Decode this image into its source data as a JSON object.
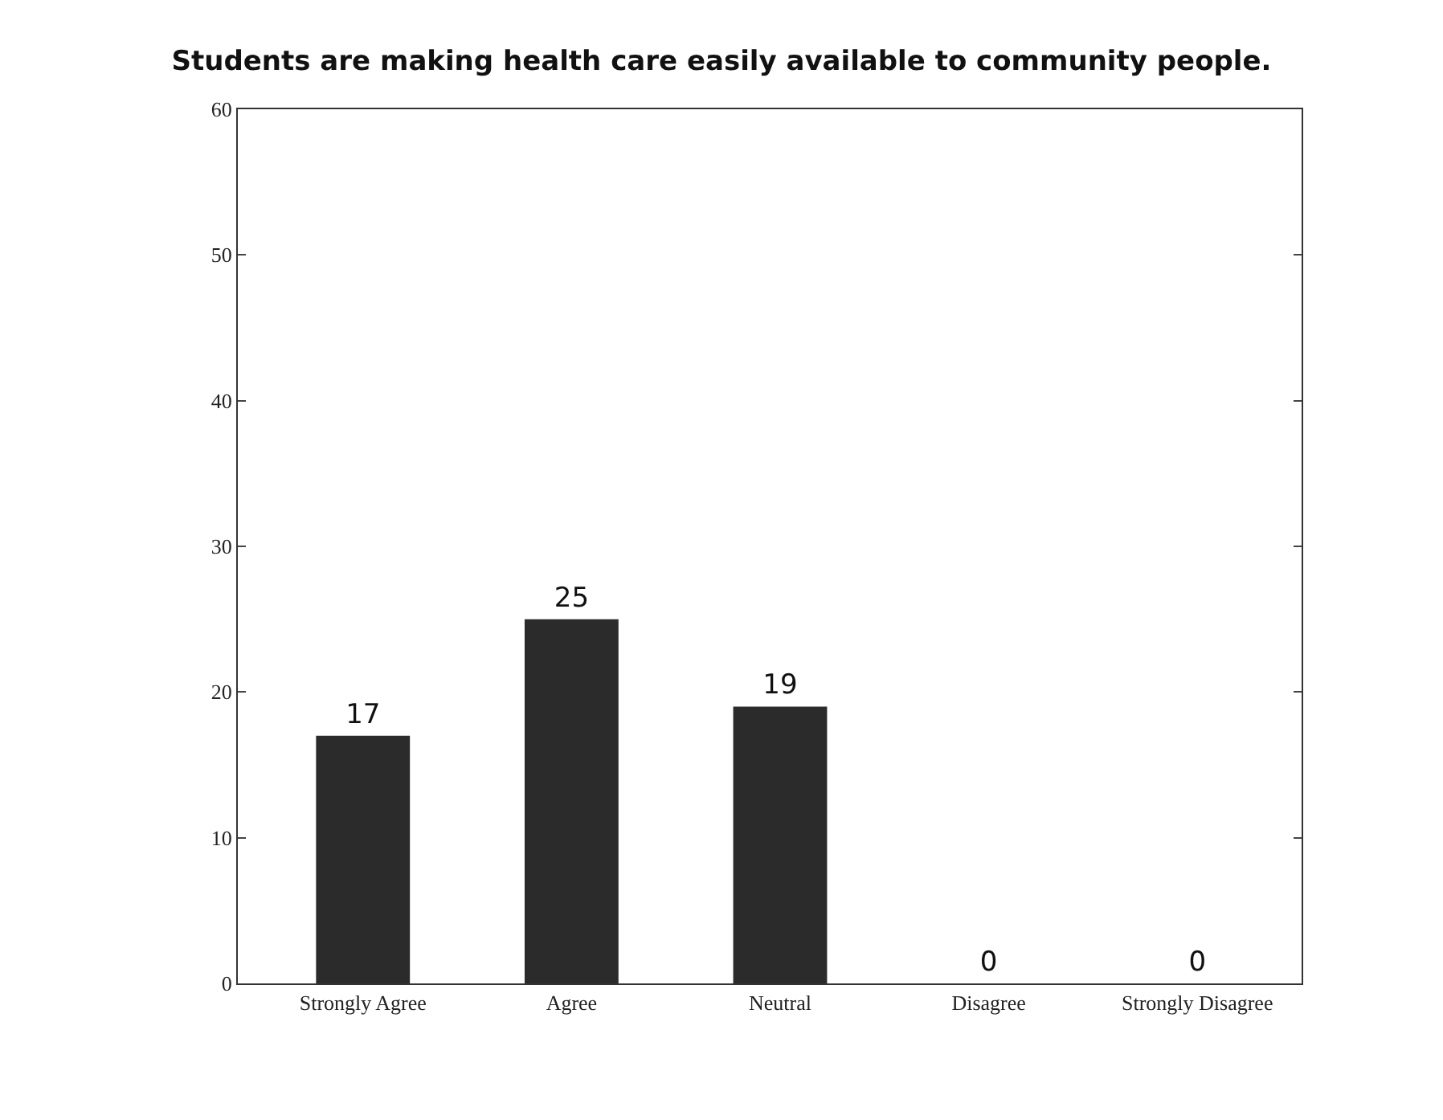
{
  "chart_data": {
    "type": "bar",
    "title": "Students are making health care easily available to community people.",
    "categories": [
      "Strongly Agree",
      "Agree",
      "Neutral",
      "Disagree",
      "Strongly Disagree"
    ],
    "values": [
      17,
      25,
      19,
      0,
      0
    ],
    "color": "#2b2b2b",
    "ylim": [
      0,
      60
    ],
    "yticks": [
      0,
      10,
      20,
      30,
      40,
      50,
      60
    ],
    "data_labels": true
  }
}
